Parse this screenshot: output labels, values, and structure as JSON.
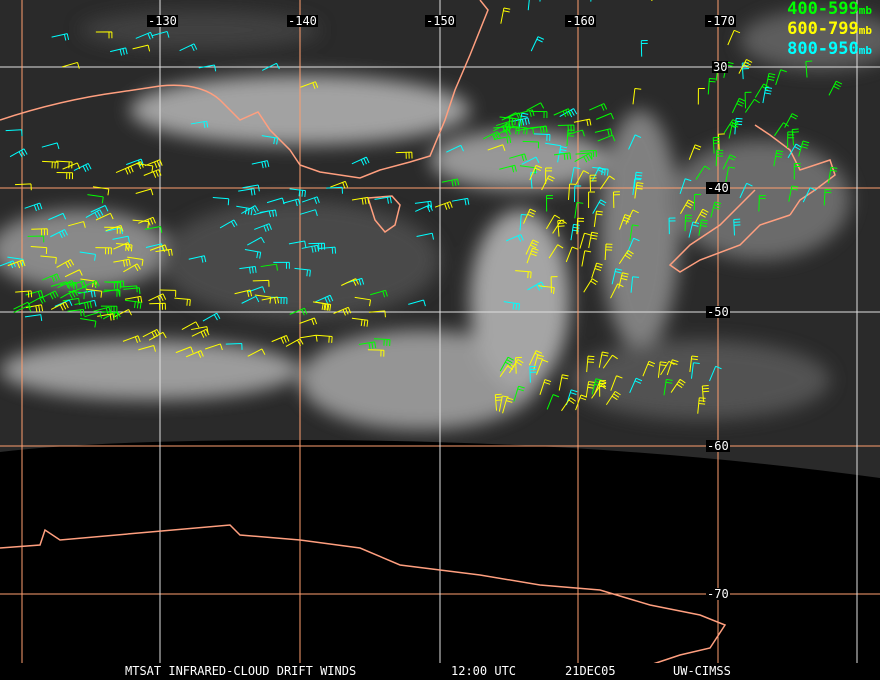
{
  "legend": [
    {
      "range": "400-599",
      "unit": "mb",
      "color": "#00ff00"
    },
    {
      "range": "600-799",
      "unit": "mb",
      "color": "#ffff00"
    },
    {
      "range": "800-950",
      "unit": "mb",
      "color": "#00ffff"
    }
  ],
  "longitude_labels": [
    "-130",
    "-140",
    "-150",
    "-160",
    "-170"
  ],
  "latitude_labels": [
    "30",
    "-40",
    "-50",
    "-60",
    "-70"
  ],
  "footer": {
    "product": "MTSAT INFRARED-CLOUD DRIFT WINDS",
    "time": "12:00 UTC",
    "date": "21DEC05",
    "source": "UW-CIMSS"
  },
  "colors": {
    "coastline": "#ff9f7f",
    "grid_orange": "#ff9f6f",
    "grid_white": "#e0e0e0"
  }
}
